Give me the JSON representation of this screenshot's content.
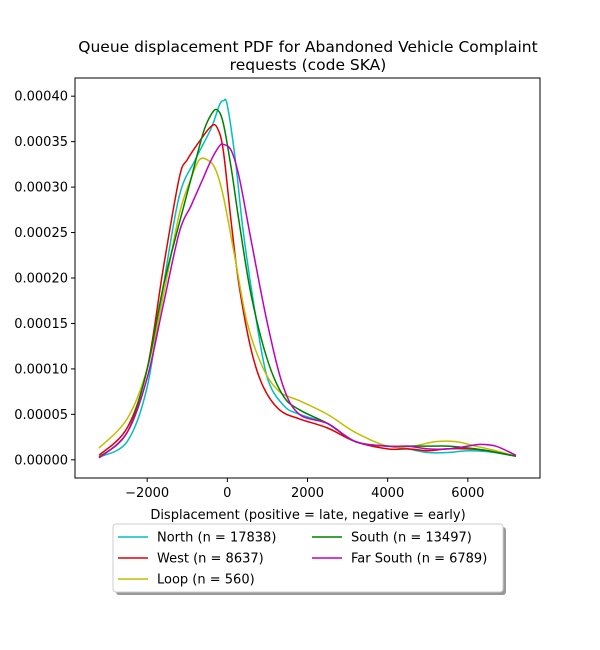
{
  "chart_data": {
    "type": "line",
    "title_line1": "Queue displacement PDF for Abandoned Vehicle Complaint",
    "title_line2": "requests (code SKA)",
    "xlabel": "Displacement (positive = late, negative = early)",
    "ylabel": "",
    "xlim": [
      -3800,
      7800
    ],
    "ylim": [
      -2e-05,
      0.00042
    ],
    "xticks": [
      -2000,
      0,
      2000,
      4000,
      6000
    ],
    "xtick_labels": [
      "−2000",
      "0",
      "2000",
      "4000",
      "6000"
    ],
    "yticks": [
      0.0,
      5e-05,
      0.0001,
      0.00015,
      0.0002,
      0.00025,
      0.0003,
      0.00035,
      0.0004
    ],
    "ytick_labels": [
      "0.00000",
      "0.00005",
      "0.00010",
      "0.00015",
      "0.00020",
      "0.00025",
      "0.00030",
      "0.00035",
      "0.00040"
    ],
    "grid": false,
    "legend_position": "below",
    "series": [
      {
        "name": "North (n = 17838)",
        "color": "#00bfbf",
        "x": [
          -3200,
          -2500,
          -2000,
          -1600,
          -1200,
          -800,
          -400,
          -200,
          -100,
          0,
          200,
          400,
          700,
          1000,
          1400,
          1800,
          2500,
          3200,
          4000,
          4500,
          5000,
          5500,
          6000,
          6500,
          7200
        ],
        "y": [
          3e-06,
          2e-05,
          8e-05,
          0.00019,
          0.00029,
          0.00033,
          0.000365,
          0.00039,
          0.000395,
          0.00039,
          0.00033,
          0.00025,
          0.00016,
          9e-05,
          6e-05,
          5e-05,
          4e-05,
          2e-05,
          1.5e-05,
          1.2e-05,
          8e-06,
          8e-06,
          1e-05,
          9e-06,
          4e-06
        ]
      },
      {
        "name": "West (n = 8637)",
        "color": "#e00000",
        "x": [
          -3200,
          -2500,
          -2000,
          -1600,
          -1200,
          -1000,
          -700,
          -400,
          -250,
          -100,
          100,
          300,
          600,
          900,
          1300,
          1800,
          2500,
          3200,
          4000,
          4500,
          5000,
          5500,
          6000,
          6500,
          7200
        ],
        "y": [
          5e-06,
          3.5e-05,
          0.0001,
          0.00021,
          0.00031,
          0.00033,
          0.00035,
          0.000367,
          0.000365,
          0.00034,
          0.00026,
          0.00019,
          0.00012,
          8e-05,
          5.5e-05,
          4.5e-05,
          3.5e-05,
          2e-05,
          1.2e-05,
          1.2e-05,
          1e-05,
          1.2e-05,
          1.2e-05,
          1e-05,
          4e-06
        ]
      },
      {
        "name": "Loop (n = 560)",
        "color": "#bfbf00",
        "x": [
          -3200,
          -2500,
          -2000,
          -1600,
          -1200,
          -900,
          -700,
          -500,
          -300,
          -100,
          200,
          500,
          900,
          1300,
          1800,
          2500,
          3200,
          4000,
          4600,
          5200,
          5700,
          6200,
          6700,
          7200
        ],
        "y": [
          1.3e-05,
          4.5e-05,
          0.0001,
          0.00018,
          0.00027,
          0.00031,
          0.00033,
          0.00033,
          0.00032,
          0.00029,
          0.00022,
          0.00015,
          0.0001,
          7.5e-05,
          6.5e-05,
          5e-05,
          3e-05,
          1.5e-05,
          1.5e-05,
          2e-05,
          2e-05,
          1.5e-05,
          1e-05,
          4e-06
        ]
      },
      {
        "name": "South (n = 13497)",
        "color": "#008000",
        "x": [
          -3200,
          -2500,
          -2000,
          -1600,
          -1200,
          -900,
          -600,
          -400,
          -250,
          -100,
          100,
          300,
          600,
          1000,
          1400,
          1800,
          2500,
          3200,
          4000,
          4500,
          5000,
          5500,
          6000,
          6500,
          7200
        ],
        "y": [
          3e-06,
          3e-05,
          0.0001,
          0.00019,
          0.00026,
          0.00031,
          0.00036,
          0.00038,
          0.000385,
          0.00037,
          0.00032,
          0.00026,
          0.00018,
          0.00011,
          7e-05,
          5.5e-05,
          4e-05,
          2e-05,
          1.5e-05,
          1.5e-05,
          1.5e-05,
          1.5e-05,
          1.3e-05,
          1e-05,
          4e-06
        ]
      },
      {
        "name": "Far South (n = 6789)",
        "color": "#bf00bf",
        "x": [
          -3200,
          -2500,
          -2000,
          -1600,
          -1200,
          -900,
          -600,
          -400,
          -200,
          -100,
          100,
          300,
          600,
          1000,
          1400,
          1800,
          2500,
          3200,
          4000,
          4500,
          5000,
          5500,
          6000,
          6300,
          6700,
          7200
        ],
        "y": [
          2e-06,
          3e-05,
          9e-05,
          0.00017,
          0.00025,
          0.00028,
          0.00031,
          0.00033,
          0.000345,
          0.000347,
          0.00034,
          0.00031,
          0.00024,
          0.00015,
          8e-05,
          5e-05,
          4e-05,
          2e-05,
          1.5e-05,
          1.5e-05,
          1.2e-05,
          1.2e-05,
          1.5e-05,
          1.7e-05,
          1.5e-05,
          5e-06
        ]
      }
    ]
  }
}
